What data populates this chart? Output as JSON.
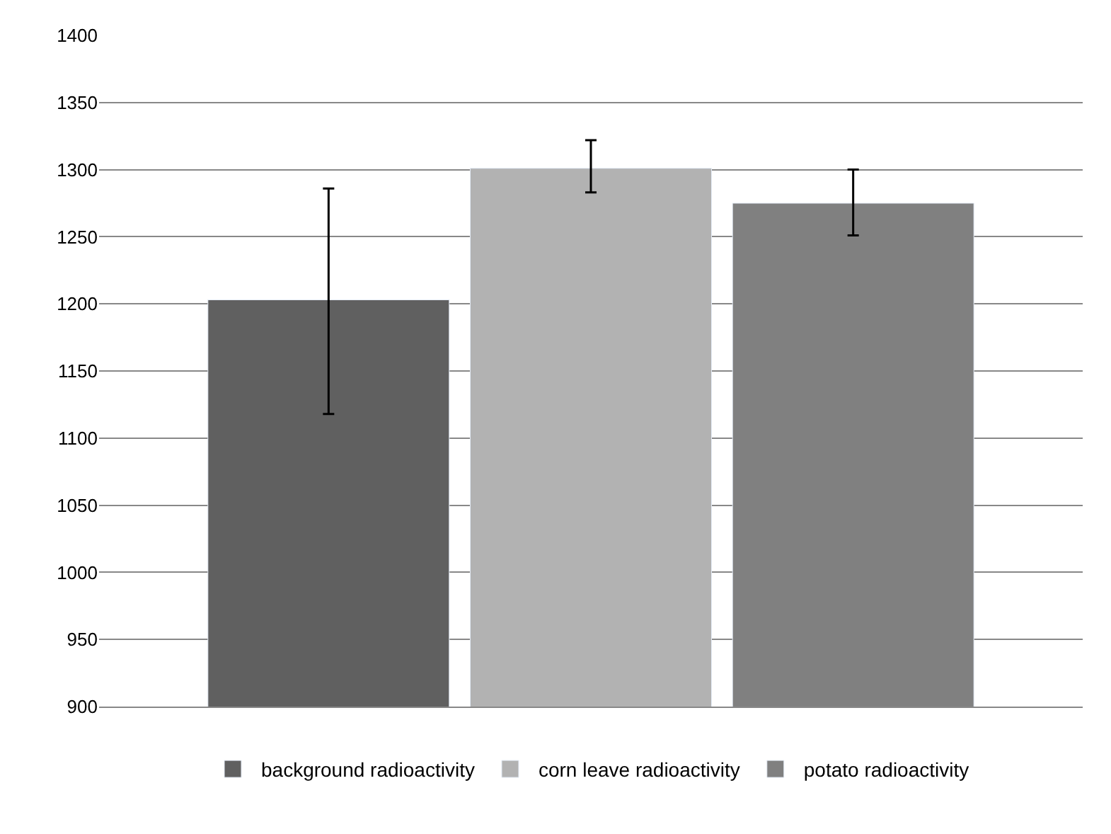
{
  "chart_data": {
    "type": "bar",
    "categories": [
      null
    ],
    "series": [
      {
        "name": "background radioactivity",
        "color": "#606060",
        "values": [
          1203
        ],
        "errors": [
          [
            1118,
            1286
          ]
        ]
      },
      {
        "name": "corn leave radioactivity",
        "color": "#b2b2b2",
        "values": [
          1301
        ],
        "errors": [
          [
            1283,
            1322
          ]
        ]
      },
      {
        "name": "potato radioactivity",
        "color": "#808080",
        "values": [
          1275
        ],
        "errors": [
          [
            1251,
            1300
          ]
        ]
      }
    ],
    "ylim": [
      900,
      1400
    ],
    "yticks": [
      900,
      950,
      1000,
      1050,
      1100,
      1150,
      1200,
      1250,
      1300,
      1350,
      1400
    ],
    "grid": "y",
    "legend": "bottom",
    "tick_labels": "y"
  }
}
